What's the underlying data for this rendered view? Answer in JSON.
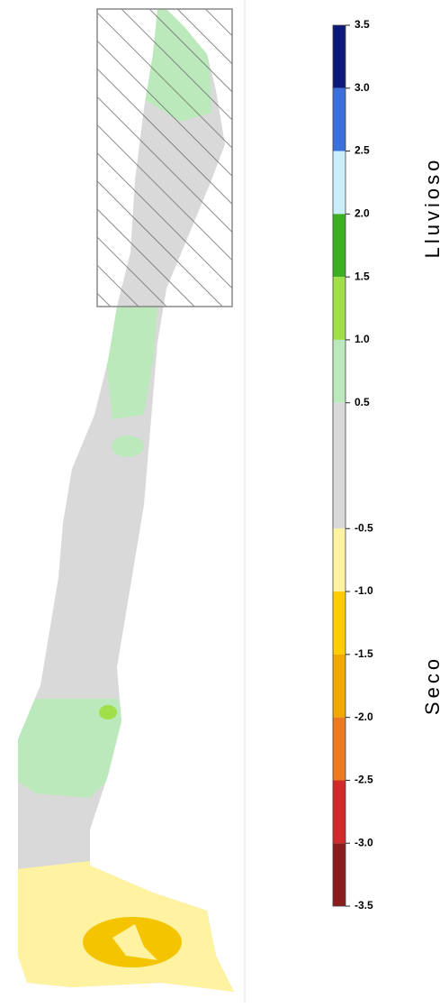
{
  "legend": {
    "ticks": [
      {
        "value": 3.5,
        "label": "3.5"
      },
      {
        "value": 3,
        "label": "3.0"
      },
      {
        "value": 2.5,
        "label": "2.5"
      },
      {
        "value": 2,
        "label": "2.0"
      },
      {
        "value": 1.5,
        "label": "1.5"
      },
      {
        "value": 1,
        "label": "1.0"
      },
      {
        "value": 0.5,
        "label": "0.5"
      },
      {
        "value": -0.5,
        "label": "-0.5"
      },
      {
        "value": -1,
        "label": "-1.0"
      },
      {
        "value": -1.5,
        "label": "-1.5"
      },
      {
        "value": -2,
        "label": "-2.0"
      },
      {
        "value": -2.5,
        "label": "-2.5"
      },
      {
        "value": -3,
        "label": "-3.0"
      },
      {
        "value": -3.5,
        "label": "-3.5"
      }
    ],
    "colors": [
      "#0b1a78",
      "#3b6fdb",
      "#c8eefa",
      "#3cae22",
      "#a0df4a",
      "#bbe9bb",
      "#d9d9d9",
      "#fff2a0",
      "#ffcc00",
      "#f0a800",
      "#ec7a20",
      "#d22a2a",
      "#8a1c1c"
    ],
    "wet_label": "Lluvioso",
    "dry_label": "Seco"
  }
}
